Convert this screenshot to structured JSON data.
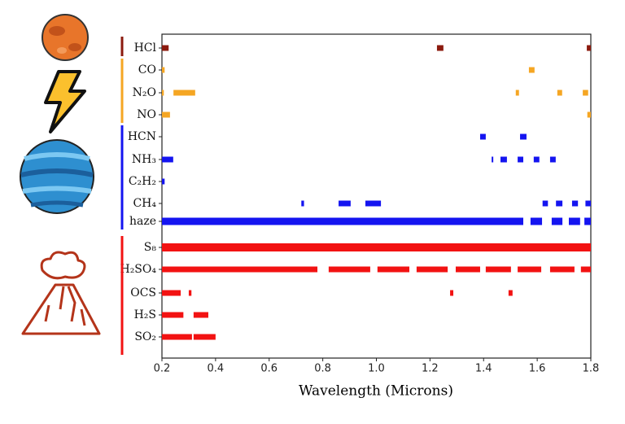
{
  "chart_data": {
    "type": "range",
    "xlabel": "Wavelength (Microns)",
    "xlim": [
      0.2,
      1.8
    ],
    "xticks": [
      0.2,
      0.4,
      0.6,
      0.8,
      {
        "value": 1.0,
        "label": "1.0"
      },
      1.2,
      1.4,
      1.6,
      1.8
    ],
    "groups": [
      {
        "color": "#8b1a0e",
        "series": [
          {
            "name": "HCl",
            "segments": [
              [
                0.2,
                0.225
              ],
              [
                1.226,
                1.25
              ],
              [
                1.785,
                1.8
              ]
            ]
          }
        ]
      },
      {
        "color": "#f5a623",
        "series": [
          {
            "name": "CO",
            "segments": [
              [
                0.2,
                0.21
              ],
              [
                1.569,
                1.59
              ]
            ]
          },
          {
            "name": "N₂O",
            "segments": [
              [
                0.2,
                0.207
              ],
              [
                0.243,
                0.324
              ],
              [
                1.52,
                1.532
              ],
              [
                1.675,
                1.693
              ],
              [
                1.77,
                1.79
              ]
            ]
          },
          {
            "name": "NO",
            "segments": [
              [
                0.2,
                0.23
              ],
              [
                1.787,
                1.8
              ]
            ]
          }
        ]
      },
      {
        "color": "#1414f0",
        "series": [
          {
            "name": "HCN",
            "segments": [
              [
                1.387,
                1.408
              ],
              [
                1.536,
                1.56
              ]
            ]
          },
          {
            "name": "NH₃",
            "segments": [
              [
                0.2,
                0.242
              ],
              [
                1.43,
                1.433
              ],
              [
                1.463,
                1.487
              ],
              [
                1.527,
                1.548
              ],
              [
                1.587,
                1.608
              ],
              [
                1.648,
                1.669
              ]
            ]
          },
          {
            "name": "C₂H₂",
            "segments": [
              [
                0.2,
                0.21
              ]
            ]
          },
          {
            "name": "CH₄",
            "segments": [
              [
                0.72,
                0.73
              ],
              [
                0.859,
                0.904
              ],
              [
                0.959,
                1.017
              ],
              [
                1.62,
                1.64
              ],
              [
                1.67,
                1.694
              ],
              [
                1.73,
                1.752
              ],
              [
                1.78,
                1.8
              ]
            ]
          },
          {
            "name": "haze",
            "segments": [
              [
                0.2,
                1.548
              ],
              [
                1.575,
                1.618
              ],
              [
                1.654,
                1.694
              ],
              [
                1.718,
                1.76
              ],
              [
                1.776,
                1.8
              ]
            ]
          }
        ]
      },
      {
        "color": "#f21212",
        "series": [
          {
            "name": "S₈",
            "segments": [
              [
                0.2,
                1.8
              ]
            ]
          },
          {
            "name": "H₂SO₄",
            "segments": [
              [
                0.2,
                0.78
              ],
              [
                0.822,
                0.977
              ],
              [
                1.004,
                1.123
              ],
              [
                1.15,
                1.266
              ],
              [
                1.296,
                1.387
              ],
              [
                1.408,
                1.502
              ],
              [
                1.527,
                1.615
              ],
              [
                1.648,
                1.739
              ],
              [
                1.763,
                1.8
              ]
            ]
          },
          {
            "name": "OCS",
            "segments": [
              [
                0.2,
                0.27
              ],
              [
                0.3,
                0.31
              ],
              [
                1.275,
                1.287
              ],
              [
                1.493,
                1.508
              ]
            ]
          },
          {
            "name": "H₂S",
            "segments": [
              [
                0.2,
                0.28
              ],
              [
                0.318,
                0.373
              ]
            ]
          },
          {
            "name": "SO₂",
            "segments": [
              [
                0.2,
                0.312
              ],
              [
                0.318,
                0.4
              ]
            ]
          }
        ]
      }
    ]
  }
}
